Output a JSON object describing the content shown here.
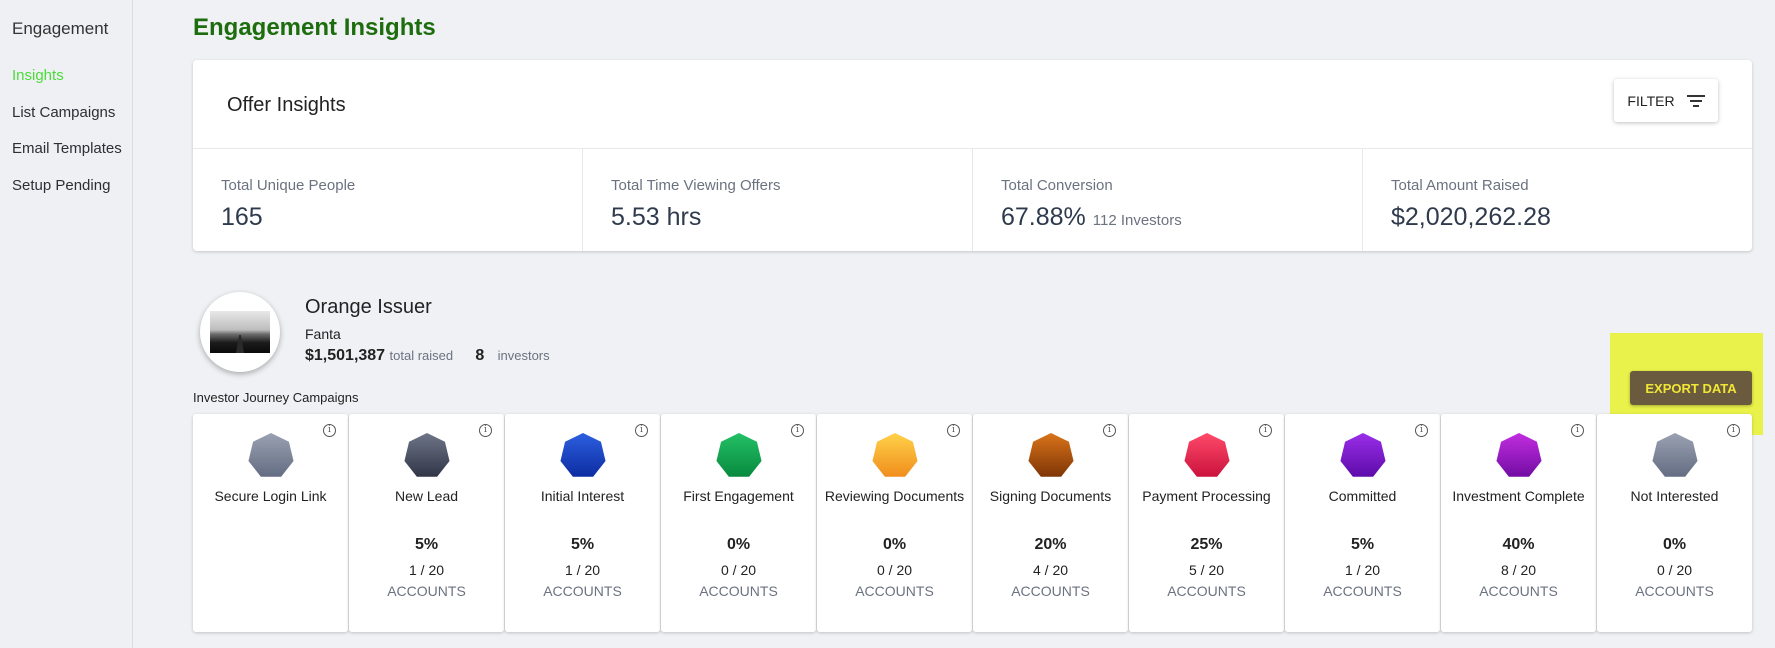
{
  "sidebar": {
    "title": "Engagement",
    "items": [
      {
        "label": "Insights",
        "active": true
      },
      {
        "label": "List Campaigns",
        "active": false
      },
      {
        "label": "Email Templates",
        "active": false
      },
      {
        "label": "Setup Pending",
        "active": false
      }
    ]
  },
  "page": {
    "title": "Engagement Insights"
  },
  "offer_insights": {
    "title": "Offer Insights",
    "filter_label": "FILTER",
    "stats": [
      {
        "label": "Total Unique People",
        "value": "165",
        "sub": ""
      },
      {
        "label": "Total Time Viewing Offers",
        "value": "5.53 hrs",
        "sub": ""
      },
      {
        "label": "Total Conversion",
        "value": "67.88%",
        "sub": "112 Investors"
      },
      {
        "label": "Total Amount Raised",
        "value": "$2,020,262.28",
        "sub": ""
      }
    ]
  },
  "issuer": {
    "name": "Orange Issuer",
    "fund": "Fanta",
    "amount": "$1,501,387",
    "amount_label": "total raised",
    "investors": "8",
    "investors_label": "investors"
  },
  "journey": {
    "label": "Investor Journey Campaigns",
    "export_label": "EXPORT DATA",
    "campaigns": [
      {
        "name": "Secure Login Link",
        "pct": "",
        "count": "",
        "accounts": "",
        "color_top": "#9aa1b2",
        "color_bottom": "#616a80",
        "icon": "heptagon-icon"
      },
      {
        "name": "New Lead",
        "pct": "5%",
        "count": "1 / 20",
        "accounts": "ACCOUNTS",
        "color_top": "#6e7588",
        "color_bottom": "#2d3343",
        "icon": "heptagon-icon"
      },
      {
        "name": "Initial Interest",
        "pct": "5%",
        "count": "1 / 20",
        "accounts": "ACCOUNTS",
        "color_top": "#2d5fe0",
        "color_bottom": "#0b2a9e",
        "icon": "heptagon-icon"
      },
      {
        "name": "First Engagement",
        "pct": "0%",
        "count": "0 / 20",
        "accounts": "ACCOUNTS",
        "color_top": "#23c066",
        "color_bottom": "#07873c",
        "icon": "heptagon-icon"
      },
      {
        "name": "Reviewing Documents",
        "pct": "0%",
        "count": "0 / 20",
        "accounts": "ACCOUNTS",
        "color_top": "#ffd24a",
        "color_bottom": "#f08a1a",
        "icon": "heptagon-icon"
      },
      {
        "name": "Signing Documents",
        "pct": "20%",
        "count": "4 / 20",
        "accounts": "ACCOUNTS",
        "color_top": "#d9741a",
        "color_bottom": "#7a3205",
        "icon": "heptagon-icon"
      },
      {
        "name": "Payment Processing",
        "pct": "25%",
        "count": "5 / 20",
        "accounts": "ACCOUNTS",
        "color_top": "#ff4a6a",
        "color_bottom": "#c8103a",
        "icon": "heptagon-icon"
      },
      {
        "name": "Committed",
        "pct": "5%",
        "count": "1 / 20",
        "accounts": "ACCOUNTS",
        "color_top": "#9a2ee8",
        "color_bottom": "#5a0aa8",
        "icon": "heptagon-icon"
      },
      {
        "name": "Investment Complete",
        "pct": "40%",
        "count": "8 / 20",
        "accounts": "ACCOUNTS",
        "color_top": "#c22ee0",
        "color_bottom": "#6e0aa0",
        "icon": "heptagon-icon"
      },
      {
        "name": "Not Interested",
        "pct": "0%",
        "count": "0 / 20",
        "accounts": "ACCOUNTS",
        "color_top": "#9aa1b2",
        "color_bottom": "#616a80",
        "icon": "heptagon-icon"
      }
    ]
  },
  "colors": {
    "title_green": "#1d6d0e",
    "active_nav": "#4cdc3a",
    "export_btn_bg": "#6b5b3e",
    "export_btn_text": "#f0e636",
    "highlight": "#e7f22c"
  }
}
